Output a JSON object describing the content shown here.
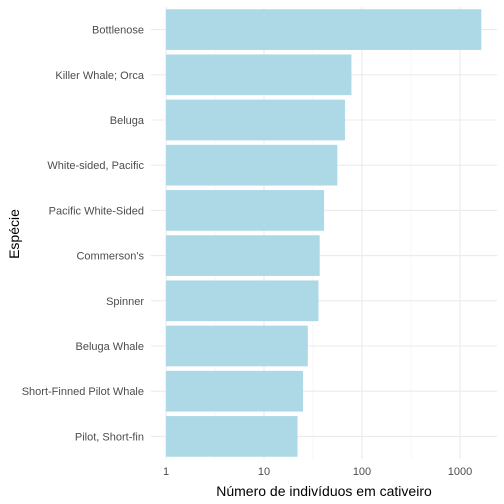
{
  "chart_data": {
    "type": "bar",
    "orientation": "horizontal",
    "x_scale": "log10",
    "xlabel": "Número de indivíduos em cativeiro",
    "ylabel": "Espécie",
    "xlim": [
      1,
      2000
    ],
    "x_ticks": [
      1,
      10,
      100,
      1000
    ],
    "x_tick_labels": [
      "1",
      "10",
      "100",
      "1000"
    ],
    "grid": true,
    "categories": [
      "Bottlenose",
      "Killer Whale; Orca",
      "Beluga",
      "White-sided, Pacific",
      "Pacific White-Sided",
      "Commerson's",
      "Spinner",
      "Beluga Whale",
      "Short-Finned Pilot Whale",
      "Pilot, Short-fin"
    ],
    "values": [
      1650,
      78,
      67,
      56,
      41,
      37,
      36,
      28,
      25,
      22
    ],
    "bar_color": "#add8e6"
  }
}
